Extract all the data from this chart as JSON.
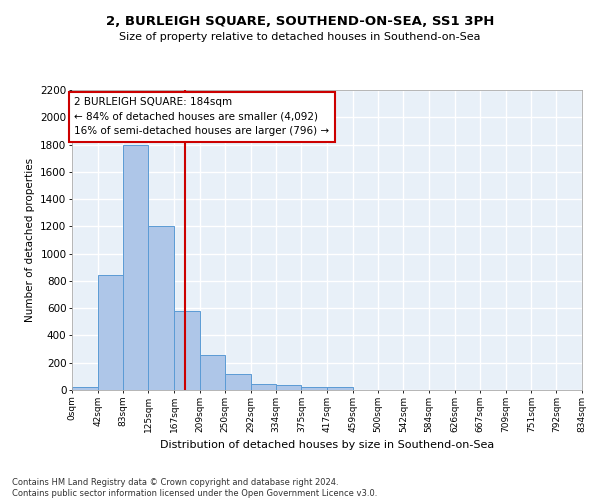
{
  "title": "2, BURLEIGH SQUARE, SOUTHEND-ON-SEA, SS1 3PH",
  "subtitle": "Size of property relative to detached houses in Southend-on-Sea",
  "xlabel": "Distribution of detached houses by size in Southend-on-Sea",
  "ylabel": "Number of detached properties",
  "bar_edges": [
    0,
    42,
    83,
    125,
    167,
    209,
    250,
    292,
    334,
    375,
    417,
    459,
    500,
    542,
    584,
    626,
    667,
    709,
    751,
    792,
    834
  ],
  "bar_heights": [
    25,
    840,
    1800,
    1200,
    580,
    255,
    120,
    45,
    35,
    25,
    20,
    0,
    0,
    0,
    0,
    0,
    0,
    0,
    0,
    0
  ],
  "bar_color": "#aec6e8",
  "bar_edge_color": "#5b9bd5",
  "bg_color": "#e8f0f8",
  "grid_color": "#ffffff",
  "red_line_x": 184,
  "annotation_title": "2 BURLEIGH SQUARE: 184sqm",
  "annotation_line1": "← 84% of detached houses are smaller (4,092)",
  "annotation_line2": "16% of semi-detached houses are larger (796) →",
  "annotation_box_color": "#ffffff",
  "annotation_border_color": "#cc0000",
  "red_line_color": "#cc0000",
  "ylim": [
    0,
    2200
  ],
  "yticks": [
    0,
    200,
    400,
    600,
    800,
    1000,
    1200,
    1400,
    1600,
    1800,
    2000,
    2200
  ],
  "tick_labels": [
    "0sqm",
    "42sqm",
    "83sqm",
    "125sqm",
    "167sqm",
    "209sqm",
    "250sqm",
    "292sqm",
    "334sqm",
    "375sqm",
    "417sqm",
    "459sqm",
    "500sqm",
    "542sqm",
    "584sqm",
    "626sqm",
    "667sqm",
    "709sqm",
    "751sqm",
    "792sqm",
    "834sqm"
  ],
  "footer_line1": "Contains HM Land Registry data © Crown copyright and database right 2024.",
  "footer_line2": "Contains public sector information licensed under the Open Government Licence v3.0."
}
